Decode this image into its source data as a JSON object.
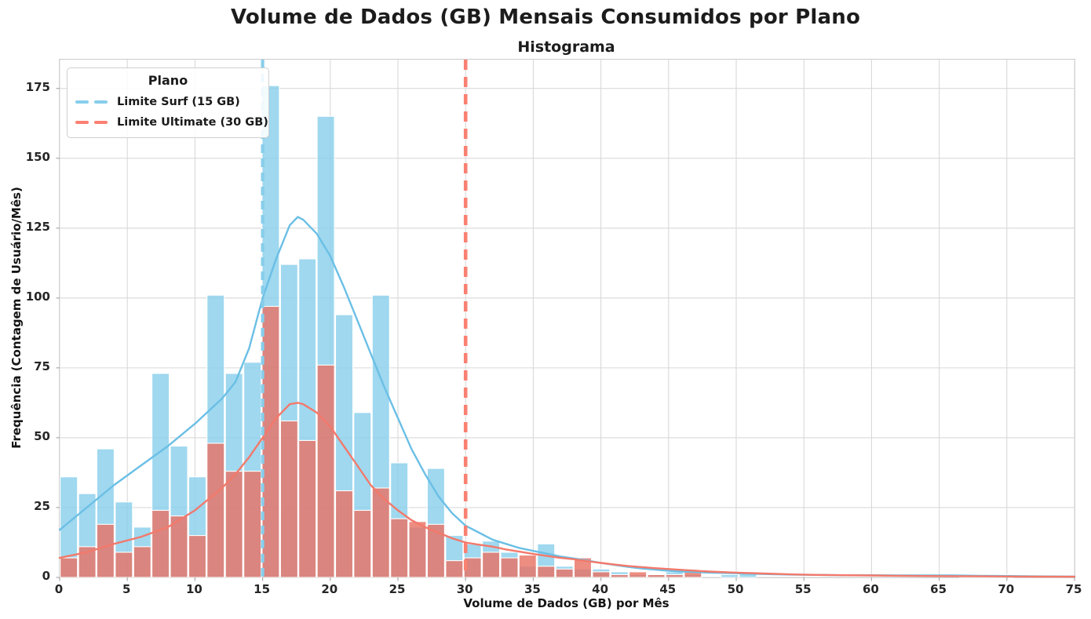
{
  "chart_data": {
    "type": "histogram",
    "title": "Volume de Dados (GB) Mensais Consumidos por Plano",
    "subtitle": "Histograma",
    "xlabel": "Volume de Dados (GB) por Mês",
    "ylabel": "Frequência (Contagem de Usuário/Mês)",
    "xlim": [
      0,
      75
    ],
    "ylim": [
      0,
      185.3
    ],
    "x_ticks": [
      0,
      5,
      10,
      15,
      20,
      25,
      30,
      35,
      40,
      45,
      50,
      55,
      60,
      65,
      70,
      75
    ],
    "y_ticks": [
      0,
      25,
      50,
      75,
      100,
      125,
      150,
      175
    ],
    "grid": true,
    "style": {
      "grid_color": "#d9d9d9",
      "spine_color": "#cccccc",
      "tick_color": "#aaaaaa",
      "bar_edge_color": "#ffffff"
    },
    "legend": {
      "title": "Plano",
      "position": "upper left"
    },
    "bin_width_gb": 1.3565,
    "series": [
      {
        "name": "Surf",
        "bar_color": "135,206,235",
        "bar_alpha": 0.8,
        "kde_color": "#6bbfe5"
      },
      {
        "name": "Ultimate",
        "bar_color": "233,113,99",
        "bar_alpha": 0.8,
        "kde_color": "#f3796b"
      }
    ],
    "bins": [
      {
        "start": 0.0,
        "surf": 36,
        "ultimate": 7
      },
      {
        "start": 1.36,
        "surf": 30,
        "ultimate": 11
      },
      {
        "start": 2.71,
        "surf": 46,
        "ultimate": 19
      },
      {
        "start": 4.07,
        "surf": 27,
        "ultimate": 9
      },
      {
        "start": 5.43,
        "surf": 18,
        "ultimate": 11
      },
      {
        "start": 6.78,
        "surf": 73,
        "ultimate": 24
      },
      {
        "start": 8.14,
        "surf": 47,
        "ultimate": 22
      },
      {
        "start": 9.5,
        "surf": 36,
        "ultimate": 15
      },
      {
        "start": 10.85,
        "surf": 101,
        "ultimate": 48
      },
      {
        "start": 12.21,
        "surf": 73,
        "ultimate": 38
      },
      {
        "start": 13.57,
        "surf": 77,
        "ultimate": 38
      },
      {
        "start": 14.92,
        "surf": 176,
        "ultimate": 97
      },
      {
        "start": 16.28,
        "surf": 112,
        "ultimate": 56
      },
      {
        "start": 17.63,
        "surf": 114,
        "ultimate": 49
      },
      {
        "start": 18.99,
        "surf": 165,
        "ultimate": 76
      },
      {
        "start": 20.35,
        "surf": 94,
        "ultimate": 31
      },
      {
        "start": 21.7,
        "surf": 59,
        "ultimate": 24
      },
      {
        "start": 23.06,
        "surf": 101,
        "ultimate": 32
      },
      {
        "start": 24.42,
        "surf": 41,
        "ultimate": 21
      },
      {
        "start": 25.77,
        "surf": 18,
        "ultimate": 20
      },
      {
        "start": 27.13,
        "surf": 39,
        "ultimate": 19
      },
      {
        "start": 28.49,
        "surf": 15,
        "ultimate": 6
      },
      {
        "start": 29.84,
        "surf": 12,
        "ultimate": 7
      },
      {
        "start": 31.2,
        "surf": 13,
        "ultimate": 9
      },
      {
        "start": 32.56,
        "surf": 9,
        "ultimate": 7
      },
      {
        "start": 33.91,
        "surf": 4,
        "ultimate": 8
      },
      {
        "start": 35.27,
        "surf": 12,
        "ultimate": 4
      },
      {
        "start": 36.63,
        "surf": 4,
        "ultimate": 3
      },
      {
        "start": 37.98,
        "surf": 3,
        "ultimate": 7
      },
      {
        "start": 39.34,
        "surf": 3,
        "ultimate": 2
      },
      {
        "start": 40.7,
        "surf": 2,
        "ultimate": 1
      },
      {
        "start": 42.05,
        "surf": 1,
        "ultimate": 2
      },
      {
        "start": 43.41,
        "surf": 1,
        "ultimate": 1
      },
      {
        "start": 44.76,
        "surf": 2,
        "ultimate": 1
      },
      {
        "start": 46.12,
        "surf": 1,
        "ultimate": 2
      },
      {
        "start": 47.48,
        "surf": 0,
        "ultimate": 0
      },
      {
        "start": 48.83,
        "surf": 1,
        "ultimate": 0
      },
      {
        "start": 50.19,
        "surf": 2,
        "ultimate": 0
      },
      {
        "start": 51.55,
        "surf": 0,
        "ultimate": 0
      },
      {
        "start": 52.9,
        "surf": 0,
        "ultimate": 0
      },
      {
        "start": 54.26,
        "surf": 0,
        "ultimate": 0
      },
      {
        "start": 55.62,
        "surf": 0,
        "ultimate": 0
      },
      {
        "start": 56.97,
        "surf": 0,
        "ultimate": 0
      },
      {
        "start": 58.33,
        "surf": 0,
        "ultimate": 0
      },
      {
        "start": 59.69,
        "surf": 0,
        "ultimate": 0
      },
      {
        "start": 61.04,
        "surf": 0,
        "ultimate": 0
      },
      {
        "start": 62.4,
        "surf": 0,
        "ultimate": 0
      },
      {
        "start": 63.76,
        "surf": 0,
        "ultimate": 0
      },
      {
        "start": 65.11,
        "surf": 0,
        "ultimate": 0
      },
      {
        "start": 66.47,
        "surf": 1,
        "ultimate": 0
      },
      {
        "start": 67.83,
        "surf": 1,
        "ultimate": 0
      },
      {
        "start": 69.18,
        "surf": 1,
        "ultimate": 0
      }
    ],
    "kde": {
      "surf": [
        [
          0,
          17
        ],
        [
          2,
          25
        ],
        [
          4,
          33
        ],
        [
          6,
          40
        ],
        [
          8,
          47
        ],
        [
          10,
          55
        ],
        [
          12,
          64
        ],
        [
          13,
          70
        ],
        [
          14,
          82
        ],
        [
          14.5,
          91
        ],
        [
          15,
          100
        ],
        [
          16,
          114
        ],
        [
          17,
          126
        ],
        [
          17.6,
          129
        ],
        [
          18,
          128
        ],
        [
          19,
          123
        ],
        [
          20,
          115
        ],
        [
          21,
          104
        ],
        [
          22,
          92
        ],
        [
          23,
          80
        ],
        [
          24,
          68
        ],
        [
          25,
          57
        ],
        [
          26,
          46
        ],
        [
          27,
          37
        ],
        [
          28,
          29
        ],
        [
          29,
          23
        ],
        [
          30,
          18.5
        ],
        [
          31,
          16
        ],
        [
          32,
          13.5
        ],
        [
          33,
          12
        ],
        [
          34,
          10.5
        ],
        [
          35,
          9.5
        ],
        [
          36,
          8.5
        ],
        [
          37,
          7.5
        ],
        [
          38,
          6.8
        ],
        [
          39,
          6
        ],
        [
          40,
          5.2
        ],
        [
          41,
          4.5
        ],
        [
          42,
          3.8
        ],
        [
          43,
          3.2
        ],
        [
          44,
          2.8
        ],
        [
          45,
          2.4
        ],
        [
          46,
          2.1
        ],
        [
          47,
          1.9
        ],
        [
          48,
          1.7
        ],
        [
          50,
          1.5
        ],
        [
          52,
          1.2
        ],
        [
          54,
          1.0
        ],
        [
          56,
          0.9
        ],
        [
          58,
          0.8
        ],
        [
          60,
          0.8
        ],
        [
          62,
          0.7
        ],
        [
          64,
          0.7
        ],
        [
          66,
          0.7
        ],
        [
          68,
          0.6
        ],
        [
          70,
          0.5
        ],
        [
          72,
          0.4
        ],
        [
          75,
          0.3
        ]
      ],
      "ultimate": [
        [
          0,
          7
        ],
        [
          2,
          9
        ],
        [
          4,
          12
        ],
        [
          6,
          14.5
        ],
        [
          8,
          18
        ],
        [
          10,
          24
        ],
        [
          12,
          32
        ],
        [
          13,
          37
        ],
        [
          14,
          43
        ],
        [
          15,
          50
        ],
        [
          16,
          57
        ],
        [
          17,
          62
        ],
        [
          17.6,
          62.5
        ],
        [
          18,
          62
        ],
        [
          19,
          59
        ],
        [
          20,
          54
        ],
        [
          21,
          47
        ],
        [
          22,
          40
        ],
        [
          23,
          33
        ],
        [
          24,
          28
        ],
        [
          25,
          24
        ],
        [
          26,
          20.5
        ],
        [
          27,
          18
        ],
        [
          28,
          16
        ],
        [
          29,
          14
        ],
        [
          30,
          12.5
        ],
        [
          31,
          11.7
        ],
        [
          32,
          11
        ],
        [
          33,
          10
        ],
        [
          34,
          9.2
        ],
        [
          35,
          8.4
        ],
        [
          36,
          7.7
        ],
        [
          37,
          7
        ],
        [
          38,
          6.5
        ],
        [
          39,
          5.8
        ],
        [
          40,
          5.2
        ],
        [
          41,
          4.6
        ],
        [
          42,
          4.1
        ],
        [
          43,
          3.7
        ],
        [
          44,
          3.3
        ],
        [
          45,
          3.0
        ],
        [
          46,
          2.7
        ],
        [
          47,
          2.4
        ],
        [
          48,
          2.1
        ],
        [
          50,
          1.7
        ],
        [
          52,
          1.4
        ],
        [
          54,
          1.1
        ],
        [
          56,
          0.9
        ],
        [
          58,
          0.8
        ],
        [
          60,
          0.7
        ],
        [
          62,
          0.6
        ],
        [
          64,
          0.5
        ],
        [
          66,
          0.45
        ],
        [
          68,
          0.4
        ],
        [
          70,
          0.35
        ],
        [
          72,
          0.3
        ],
        [
          75,
          0.25
        ]
      ]
    },
    "vlines": [
      {
        "x": 15,
        "label": "Limite Surf (15 GB)",
        "color": "#87ceeb",
        "dash": [
          11,
          7
        ],
        "width": 4.2
      },
      {
        "x": 30,
        "label": "Limite Ultimate (30 GB)",
        "color": "#fa8072",
        "dash": [
          13,
          9
        ],
        "width": 4.6
      }
    ]
  }
}
